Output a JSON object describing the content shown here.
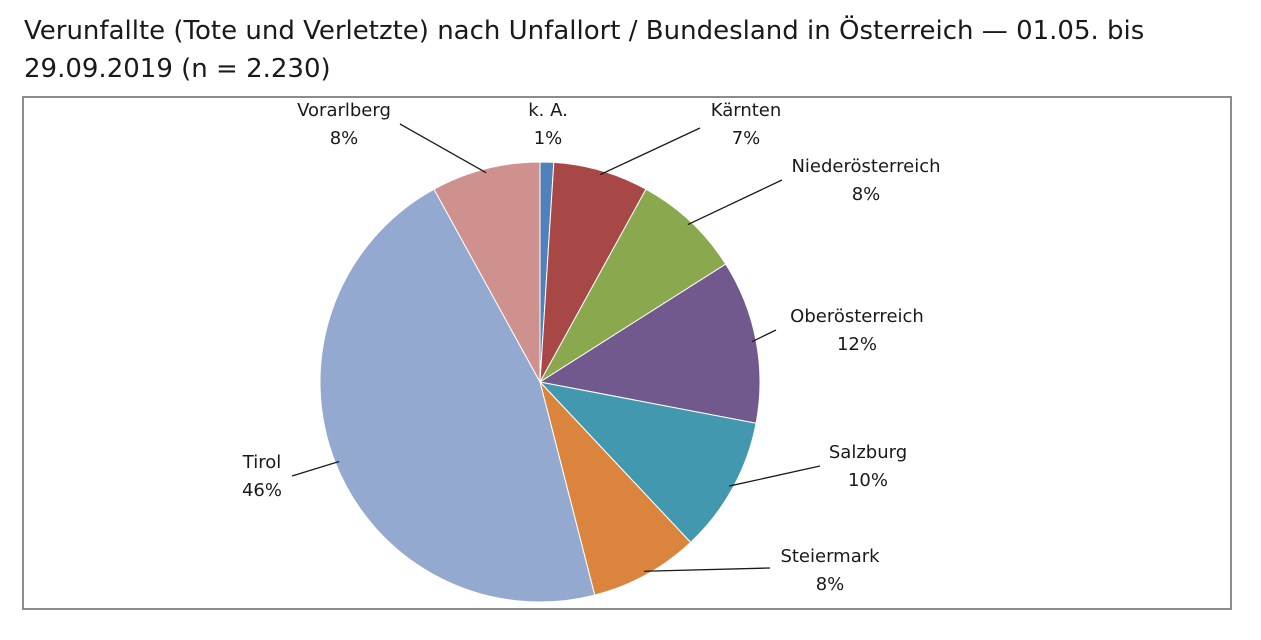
{
  "title": "Verunfallte (Tote und Verletzte) nach Unfallort / Bundesland in Österreich — 01.05. bis 29.09.2019 (n = 2.230)",
  "chart_data": {
    "type": "pie",
    "title": "Verunfallte (Tote und Verletzte) nach Unfallort / Bundesland in Österreich — 01.05. bis 29.09.2019 (n = 2.230)",
    "slices": [
      {
        "label": "k. A.",
        "value": 1,
        "display": "1%",
        "color": "#4f81bd"
      },
      {
        "label": "Kärnten",
        "value": 7,
        "display": "7%",
        "color": "#a84846"
      },
      {
        "label": "Niederösterreich",
        "value": 8,
        "display": "8%",
        "color": "#8aa84e"
      },
      {
        "label": "Oberösterreich",
        "value": 12,
        "display": "12%",
        "color": "#71598e"
      },
      {
        "label": "Salzburg",
        "value": 10,
        "display": "10%",
        "color": "#4298ae"
      },
      {
        "label": "Steiermark",
        "value": 8,
        "display": "8%",
        "color": "#da843e"
      },
      {
        "label": "Tirol",
        "value": 46,
        "display": "46%",
        "color": "#94a9cf"
      },
      {
        "label": "Vorarlberg",
        "value": 8,
        "display": "8%",
        "color": "#cf918e"
      }
    ]
  }
}
